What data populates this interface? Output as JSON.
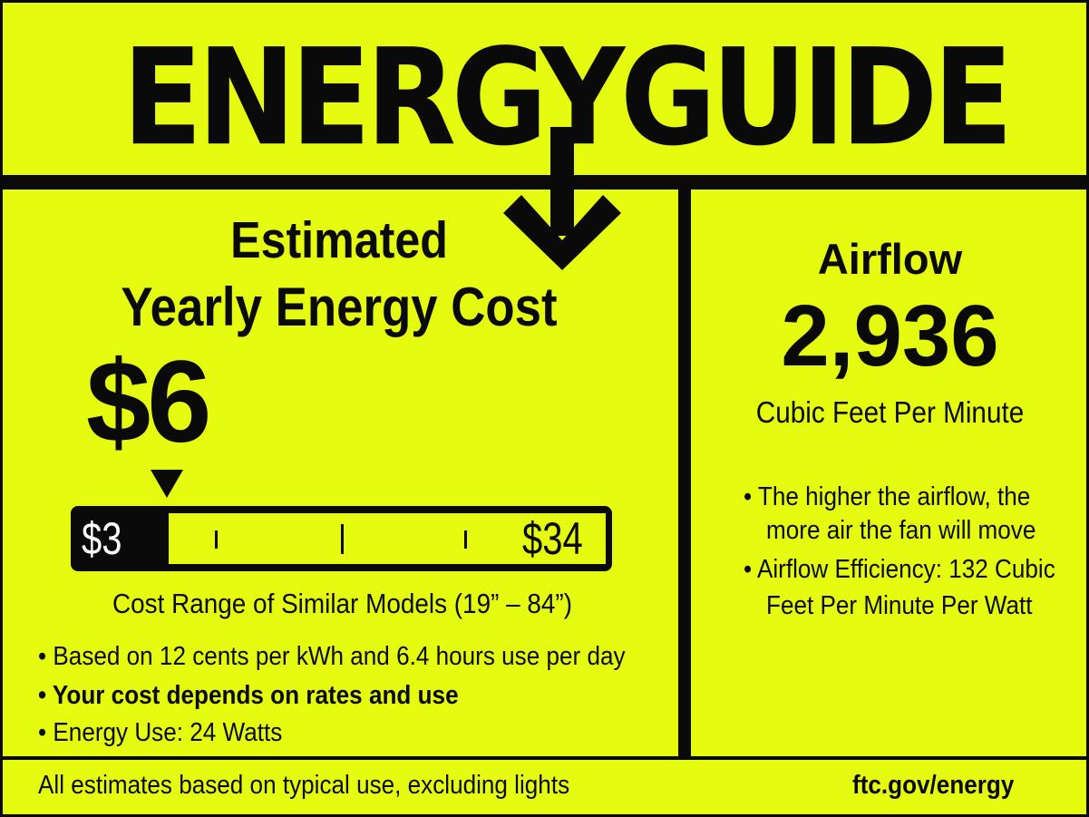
{
  "colors": {
    "background": "#e5fc10",
    "ink": "#0a0a0a"
  },
  "logo": "ENERGYGUIDE",
  "cost_section": {
    "heading_line1": "Estimated",
    "heading_line2": "Yearly Energy Cost",
    "value": "$6",
    "scale": {
      "min_label": "$3",
      "max_label": "$34",
      "min": 3,
      "max": 34,
      "value": 6
    },
    "range_caption": "Cost Range of Similar Models (19” – 84”)",
    "bullets": [
      "• Based on 12 cents per kWh and 6.4 hours use per day",
      "• Your cost depends on rates and use",
      "• Energy Use:  24 Watts"
    ]
  },
  "airflow_section": {
    "heading": "Airflow",
    "value": "2,936",
    "unit": "Cubic Feet Per Minute",
    "bullets": [
      [
        "• The higher the airflow, the",
        "more air the fan will move"
      ],
      [
        "• Airflow Efficiency: 132 Cubic",
        "Feet Per Minute Per Watt"
      ]
    ]
  },
  "footer": {
    "note": "All estimates based on typical use, excluding lights",
    "link": "ftc.gov/energy"
  }
}
